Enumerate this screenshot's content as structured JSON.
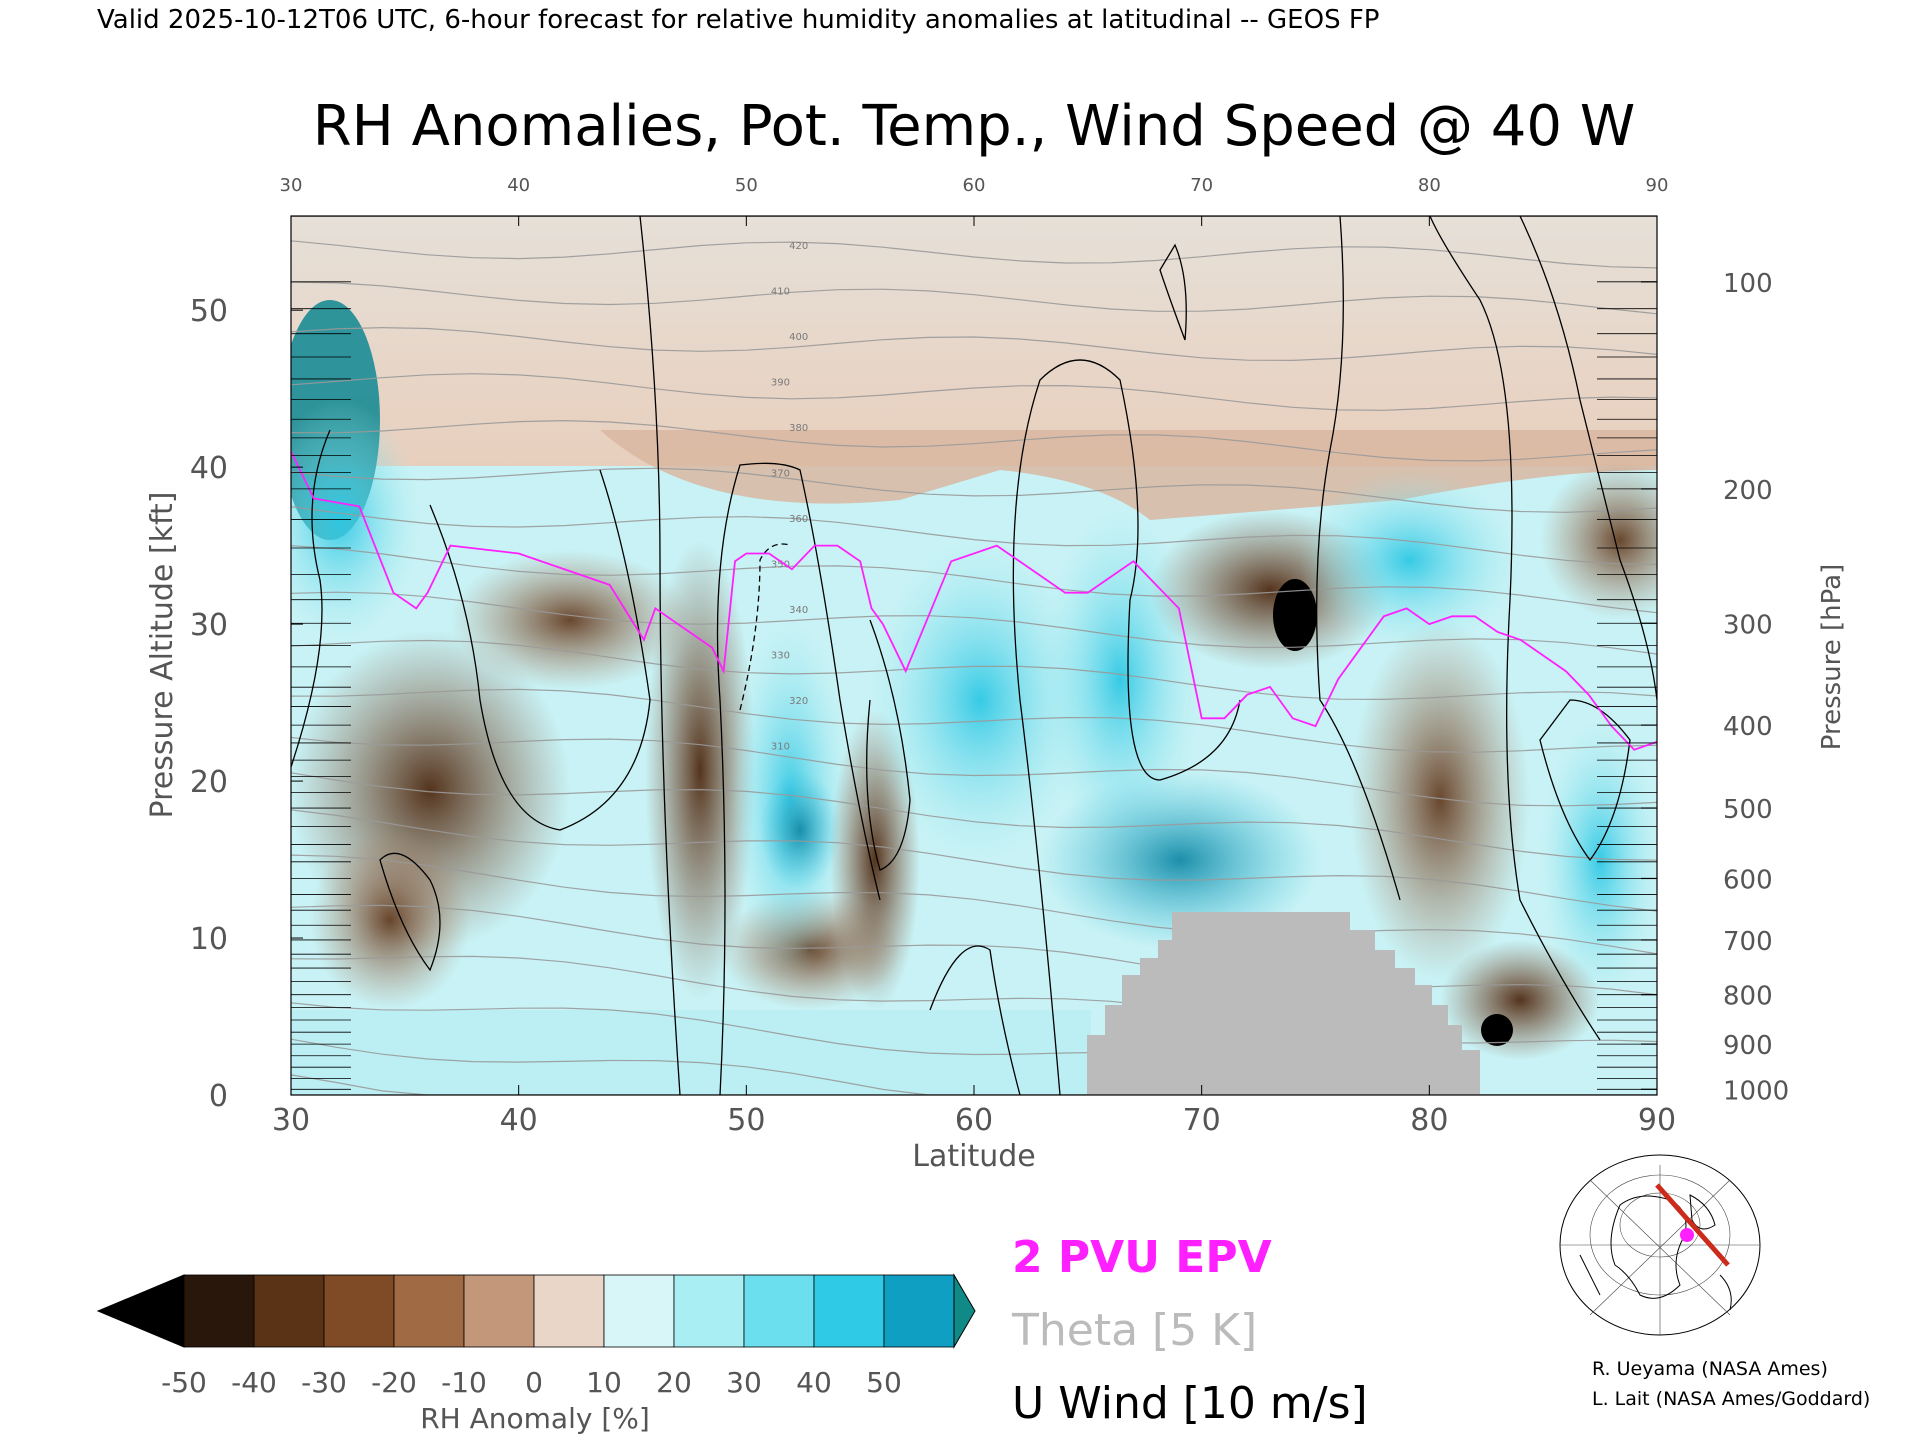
{
  "page": {
    "header": "Valid 2025-10-12T06 UTC, 6-hour forecast for relative humidity anomalies at latitudinal -- GEOS FP",
    "title": "RH Anomalies, Pot. Temp., Wind Speed @ 40 W"
  },
  "chart_data": {
    "type": "heatmap",
    "title": "RH Anomalies, Pot. Temp., Wind Speed @ 40 W",
    "xlabel": "Latitude",
    "ylabel": "Pressure Altitude [kft]",
    "y2label": "Pressure [hPa]",
    "xlim": [
      30,
      90
    ],
    "ylim": [
      0,
      56
    ],
    "x_ticks": [
      "30",
      "40",
      "50",
      "60",
      "70",
      "80",
      "90"
    ],
    "y_ticks": [
      "0",
      "10",
      "20",
      "30",
      "40",
      "50"
    ],
    "pressure_ticks": [
      "100",
      "200",
      "300",
      "400",
      "500",
      "600",
      "700",
      "800",
      "900",
      "1000"
    ],
    "pressure_tick_values": [
      100,
      200,
      300,
      400,
      500,
      600,
      700,
      800,
      900,
      1000
    ],
    "colorbar": {
      "label": "RH Anomaly [%]",
      "ticks": [
        "-50",
        "-40",
        "-30",
        "-20",
        "-10",
        "0",
        "10",
        "20",
        "30",
        "40",
        "50"
      ],
      "colors": [
        "#2a170b",
        "#5a3216",
        "#7f4b26",
        "#a06a45",
        "#c2977a",
        "#ead6c8",
        "#d8f6f7",
        "#a8eef3",
        "#6cdfee",
        "#2fcbe6",
        "#0f9fc2"
      ],
      "under_color": "#000000",
      "over_color": "#0f8a86"
    },
    "overlays": [
      {
        "name": "2 PVU EPV",
        "color": "#ff20ff",
        "x": [
          30,
          31,
          33,
          34.5,
          35.5,
          36,
          37,
          40,
          44,
          45.5,
          46,
          47,
          48.5,
          49,
          49.5,
          50,
          51,
          52,
          53,
          54,
          55,
          55.5,
          56,
          57,
          59,
          61,
          62,
          64,
          65,
          66,
          67,
          68,
          69,
          70,
          71,
          72,
          73,
          74,
          75,
          76,
          77,
          78,
          79,
          80,
          81,
          82,
          83,
          84,
          85,
          86,
          87,
          88,
          89,
          90
        ],
        "y": [
          41,
          38,
          37.5,
          32,
          31,
          32,
          35,
          34.5,
          32.5,
          29,
          31,
          30,
          28.5,
          27,
          34,
          34.5,
          34.5,
          33.5,
          35,
          35,
          34,
          31,
          30,
          27,
          34,
          35,
          34,
          32,
          32,
          33,
          34,
          32.5,
          31,
          24,
          24,
          25.5,
          26,
          24,
          23.5,
          26.5,
          28.5,
          30.5,
          31,
          30,
          30.5,
          30.5,
          29.5,
          29,
          28,
          27,
          25.5,
          23.5,
          22,
          22.5
        ]
      },
      {
        "name": "Theta [5 K]",
        "color": "#bbbbbb",
        "levels": [
          "310",
          "320",
          "330",
          "340",
          "350",
          "360",
          "370",
          "380",
          "390",
          "400",
          "410",
          "420"
        ]
      },
      {
        "name": "U Wind [10 m/s]",
        "color": "#000000",
        "levels": [
          "-10",
          "0",
          "10",
          "20",
          "30"
        ]
      }
    ],
    "grid": false,
    "legend": "bottom-center"
  },
  "legend": {
    "epv": "2 PVU EPV",
    "theta": "Theta [5 K]",
    "uwind": "U Wind [10 m/s]",
    "colors": {
      "epv": "#ff20ff",
      "theta": "#bbbbbb",
      "uwind": "#000000"
    }
  },
  "credits": {
    "line1": "R. Ueyama (NASA Ames)",
    "line2": "L. Lait (NASA Ames/Goddard)"
  },
  "inset_map": {
    "icon": "polar-map-icon",
    "cross_section_color": "#cc2a1a",
    "marker_color": "#ff20ff"
  }
}
